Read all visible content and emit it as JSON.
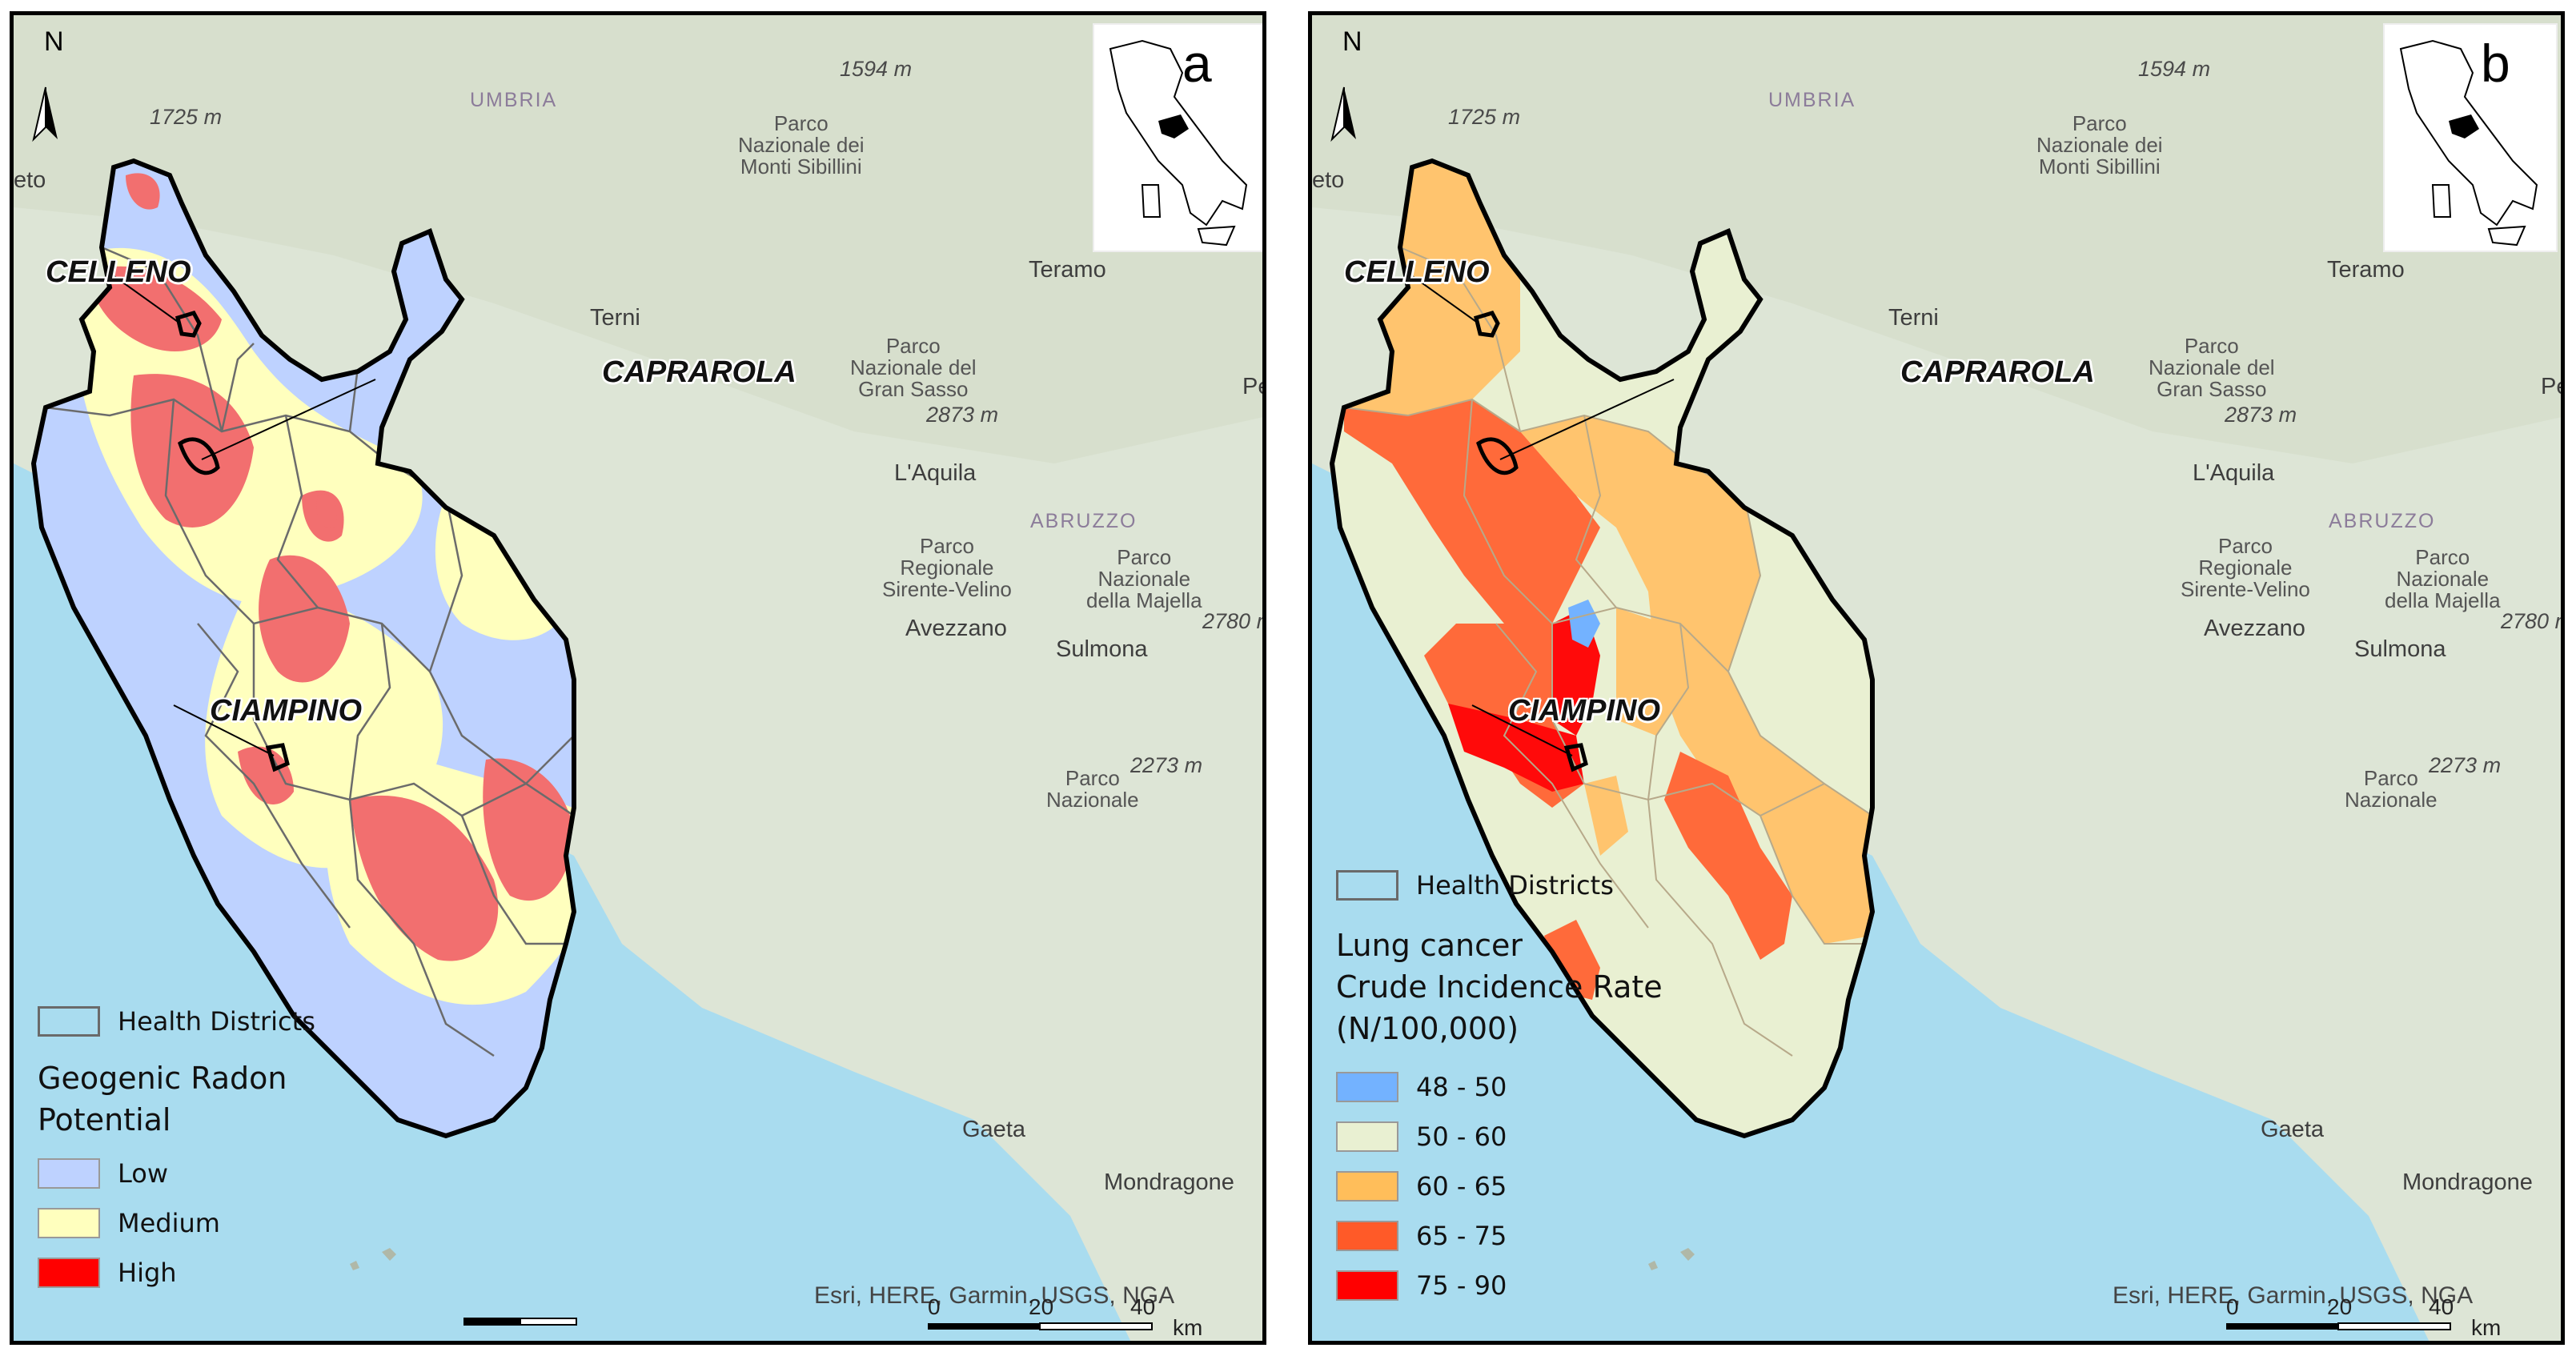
{
  "panels": [
    {
      "letter": "a",
      "north": "N",
      "towns": [
        "CELLENO",
        "CAPRAROLA",
        "CIAMPINO"
      ],
      "place_labels": {
        "umbria": "UMBRIA",
        "abruzzo": "ABRUZZO",
        "terni": "Terni",
        "teramo": "Teramo",
        "laquila": "L'Aquila",
        "avezzano": "Avezzano",
        "sulmona": "Sulmona",
        "gaeta": "Gaeta",
        "mondragone": "Mondragone",
        "eto": "eto",
        "pe": "Pe"
      },
      "elevations": [
        "1725 m",
        "1594 m",
        "2873 m",
        "2780 m",
        "2273 m"
      ],
      "parks": [
        "Parco\nNazionale dei\nMonti Sibillini",
        "Parco\nNazionale del\nGran Sasso",
        "Parco\nRegionale\nSirente-Velino",
        "Parco\nNazionale\ndella Majella",
        "Parco\nNazionale"
      ],
      "legend": {
        "districts_label": "Health Districts",
        "title": "Geogenic Radon\nPotential",
        "items": [
          {
            "label": "Low",
            "color": "#bed2ff"
          },
          {
            "label": "Medium",
            "color": "#ffffbe"
          },
          {
            "label": "High",
            "color": "#ff0000"
          }
        ]
      },
      "credit": "Esri, HERE, Garmin, USGS, NGA",
      "scale": {
        "ticks": [
          "0",
          "20",
          "40"
        ],
        "unit": "km"
      }
    },
    {
      "letter": "b",
      "north": "N",
      "towns": [
        "CELLENO",
        "CAPRAROLA",
        "CIAMPINO"
      ],
      "place_labels": {
        "umbria": "UMBRIA",
        "abruzzo": "ABRUZZO",
        "terni": "Terni",
        "teramo": "Teramo",
        "laquila": "L'Aquila",
        "avezzano": "Avezzano",
        "sulmona": "Sulmona",
        "gaeta": "Gaeta",
        "mondragone": "Mondragone",
        "eto": "eto",
        "pe": "Pe"
      },
      "elevations": [
        "1725 m",
        "1594 m",
        "2873 m",
        "2780 m",
        "2273 m"
      ],
      "parks": [
        "Parco\nNazionale dei\nMonti Sibillini",
        "Parco\nNazionale del\nGran Sasso",
        "Parco\nRegionale\nSirente-Velino",
        "Parco\nNazionale\ndella Majella",
        "Parco\nNazionale"
      ],
      "legend": {
        "districts_label": "Health Districts",
        "title": "Lung cancer\nCrude Incidence Rate\n(N/100,000)",
        "items": [
          {
            "label": "48 - 50",
            "color": "#73b2ff"
          },
          {
            "label": "50 - 60",
            "color": "#e9f0d2"
          },
          {
            "label": "60 - 65",
            "color": "#ffbe5a"
          },
          {
            "label": "65 - 75",
            "color": "#ff5a28"
          },
          {
            "label": "75 - 90",
            "color": "#ff0000"
          }
        ]
      },
      "credit": "Esri, HERE, Garmin, USGS, NGA",
      "scale": {
        "ticks": [
          "0",
          "20",
          "40"
        ],
        "unit": "km"
      }
    }
  ],
  "colors": {
    "sea": "#a9dcef",
    "land": "#dfe6d8",
    "radon_low": "#bed2ff",
    "radon_medium": "#ffffbe",
    "radon_high": "#f26f6f",
    "inc_48_50": "#73b2ff",
    "inc_50_60": "#e9f0d2",
    "inc_60_65": "#ffc46e",
    "inc_65_75": "#ff6a3a",
    "inc_75_90": "#ff0a0a"
  }
}
